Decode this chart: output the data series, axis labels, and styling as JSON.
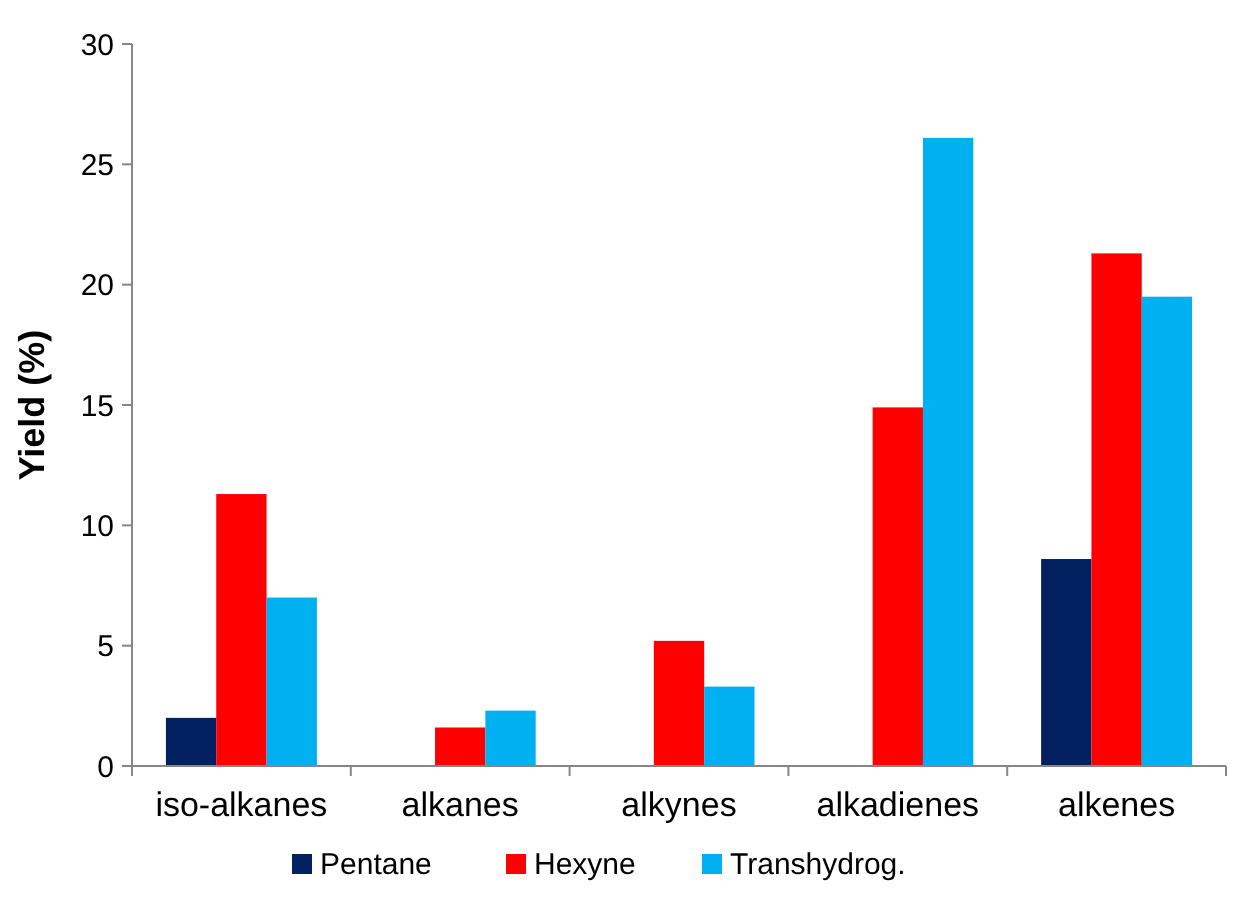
{
  "chart_data": {
    "type": "bar",
    "ylabel": "Yield (%)",
    "categories": [
      "iso-alkanes",
      "alkanes",
      "alkynes",
      "alkadienes",
      "alkenes"
    ],
    "series": [
      {
        "name": "Pentane",
        "color": "#002060",
        "values": [
          2.0,
          0,
          0,
          0,
          8.6
        ]
      },
      {
        "name": "Hexyne",
        "color": "#ff0000",
        "values": [
          11.3,
          1.6,
          5.2,
          14.9,
          21.3
        ]
      },
      {
        "name": "Transhydrog.",
        "color": "#00b0f0",
        "values": [
          7.0,
          2.3,
          3.3,
          26.1,
          19.5
        ]
      }
    ],
    "ylim": [
      0,
      30
    ],
    "yticks": [
      0,
      5,
      10,
      15,
      20,
      25,
      30
    ],
    "grid": false,
    "legend": "bottom"
  }
}
